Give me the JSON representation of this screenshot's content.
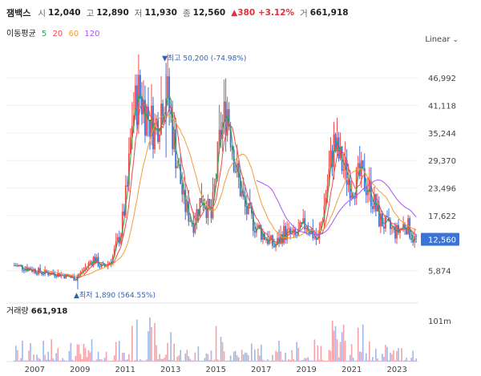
{
  "header": {
    "name": "잼백스",
    "open_label": "시",
    "open": "12,040",
    "high_label": "고",
    "high": "12,890",
    "low_label": "저",
    "low": "11,930",
    "close_label": "종",
    "close": "12,560",
    "change": "▲380 +3.12%",
    "volume_label": "거",
    "volume": "661,918"
  },
  "ma": {
    "label": "이동평균",
    "periods": [
      "5",
      "20",
      "60",
      "120"
    ],
    "colors": [
      "#2aa34a",
      "#ef4b4b",
      "#f39c39",
      "#a855f7"
    ]
  },
  "scale_label": "Linear",
  "colors": {
    "up": "#ef4b4b",
    "down": "#3b73d6",
    "last_price_bg": "#3b73d6"
  },
  "chart_data": {
    "type": "candlestick",
    "y_ticks": [
      "46,992",
      "41,118",
      "35,244",
      "29,370",
      "23,496",
      "17,622",
      "5,874"
    ],
    "y_tick_values": [
      46992,
      41118,
      35244,
      29370,
      23496,
      17622,
      5874
    ],
    "x_ticks": [
      "2007",
      "2009",
      "2011",
      "2013",
      "2015",
      "2017",
      "2019",
      "2021",
      "2023"
    ],
    "ylim": [
      0,
      53000
    ],
    "last_price": "12,560",
    "last_price_value": 12560,
    "max_annotation": "▼최고 50,200 (-74.98%)",
    "max_value": 50200,
    "max_date": "2012.8",
    "min_annotation": "▲최저 1,890 (564.55%)",
    "min_value": 1890,
    "min_date": "2008.9",
    "approx_price_path": [
      {
        "t": 2006.1,
        "v": 7000
      },
      {
        "t": 2006.7,
        "v": 6400
      },
      {
        "t": 2007.3,
        "v": 5500
      },
      {
        "t": 2008.0,
        "v": 5200
      },
      {
        "t": 2008.8,
        "v": 4200
      },
      {
        "t": 2009.2,
        "v": 6200
      },
      {
        "t": 2009.6,
        "v": 8500
      },
      {
        "t": 2010.0,
        "v": 6400
      },
      {
        "t": 2010.4,
        "v": 8200
      },
      {
        "t": 2010.8,
        "v": 14000
      },
      {
        "t": 2011.1,
        "v": 24000
      },
      {
        "t": 2011.3,
        "v": 38000
      },
      {
        "t": 2011.6,
        "v": 44000
      },
      {
        "t": 2011.9,
        "v": 40000
      },
      {
        "t": 2012.3,
        "v": 36000
      },
      {
        "t": 2012.8,
        "v": 45000
      },
      {
        "t": 2013.2,
        "v": 32000
      },
      {
        "t": 2013.6,
        "v": 20000
      },
      {
        "t": 2014.0,
        "v": 16000
      },
      {
        "t": 2014.4,
        "v": 22000
      },
      {
        "t": 2014.8,
        "v": 17000
      },
      {
        "t": 2015.2,
        "v": 35000
      },
      {
        "t": 2015.5,
        "v": 41000
      },
      {
        "t": 2015.9,
        "v": 27000
      },
      {
        "t": 2016.3,
        "v": 19000
      },
      {
        "t": 2016.8,
        "v": 15000
      },
      {
        "t": 2017.2,
        "v": 13000
      },
      {
        "t": 2017.6,
        "v": 11000
      },
      {
        "t": 2018.0,
        "v": 14000
      },
      {
        "t": 2018.5,
        "v": 13000
      },
      {
        "t": 2019.0,
        "v": 16000
      },
      {
        "t": 2019.5,
        "v": 12000
      },
      {
        "t": 2019.8,
        "v": 20000
      },
      {
        "t": 2020.2,
        "v": 33000
      },
      {
        "t": 2020.6,
        "v": 28000
      },
      {
        "t": 2021.0,
        "v": 24000
      },
      {
        "t": 2021.4,
        "v": 26000
      },
      {
        "t": 2021.8,
        "v": 23000
      },
      {
        "t": 2022.2,
        "v": 17000
      },
      {
        "t": 2022.6,
        "v": 15000
      },
      {
        "t": 2023.0,
        "v": 14000
      },
      {
        "t": 2023.4,
        "v": 16000
      },
      {
        "t": 2023.75,
        "v": 12560
      }
    ],
    "volume_label": "거래량",
    "volume_value": "661,918",
    "volume_tick": "101m",
    "volume_tick_value": 101000000
  }
}
